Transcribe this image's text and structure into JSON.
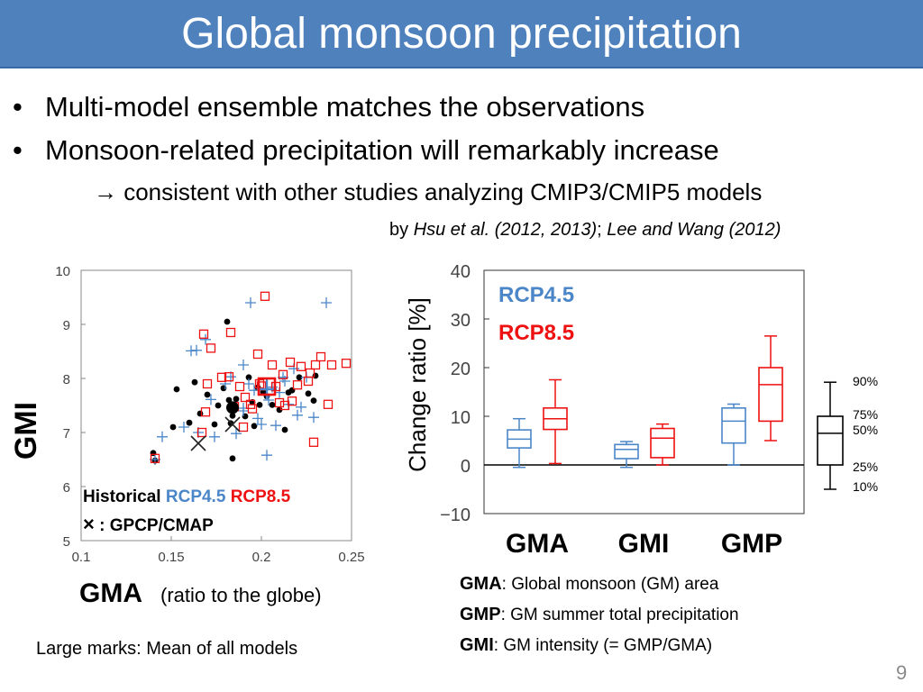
{
  "slide": {
    "title": "Global monsoon precipitation",
    "bullets": [
      "Multi-model ensemble matches the observations",
      "Monsoon-related precipitation will remarkably increase"
    ],
    "bullet_symbol": "•",
    "arrow_line": "→ consistent with other studies analyzing CMIP3/CMIP5 models",
    "byline": {
      "prefix": "by ",
      "ref1": "Hsu et al. (2012, 2013)",
      "sep": "; ",
      "ref2": "Lee and Wang (2012)"
    },
    "large_marks_note": "Large marks:  Mean of all models",
    "page_number": "9",
    "glossary": [
      {
        "term": "GMA",
        "colon": ":  ",
        "desc": "Global monsoon (GM) area"
      },
      {
        "term": "GMP",
        "colon": ":   ",
        "desc": "GM summer total precipitation"
      },
      {
        "term": "GMI",
        "colon": ":    ",
        "desc": "GM intensity (= GMP/GMA)"
      }
    ]
  },
  "colors": {
    "title_bar": "#4f81bd",
    "historical": "#000000",
    "rcp45": "#4a86c8",
    "rcp85": "#ee1111"
  },
  "chart_data": [
    {
      "type": "scatter",
      "xlabel": "GMA",
      "xlabel_note": "(ratio to the globe)",
      "ylabel": "GMI",
      "xlim": [
        0.1,
        0.25
      ],
      "ylim": [
        5,
        10
      ],
      "xticks": [
        "0.1",
        "0.15",
        "0.2",
        "0.25"
      ],
      "yticks": [
        "5",
        "6",
        "7",
        "8",
        "9",
        "10"
      ],
      "legend": {
        "labels": [
          "Historical",
          "RCP4.5",
          "RCP8.5"
        ],
        "obs_symbol": "×",
        "obs_label": ": GPCP/CMAP",
        "placement": "bottom-left"
      },
      "series": [
        {
          "name": "Historical",
          "marker": "dot",
          "points": [
            [
              0.14,
              6.62
            ],
            [
              0.141,
              6.48
            ],
            [
              0.151,
              7.1
            ],
            [
              0.153,
              7.8
            ],
            [
              0.16,
              7.18
            ],
            [
              0.163,
              7.93
            ],
            [
              0.166,
              7.35
            ],
            [
              0.17,
              7.7
            ],
            [
              0.174,
              7.15
            ],
            [
              0.176,
              7.5
            ],
            [
              0.179,
              7.82
            ],
            [
              0.181,
              9.05
            ],
            [
              0.182,
              7.6
            ],
            [
              0.184,
              7.31
            ],
            [
              0.184,
              6.52
            ],
            [
              0.186,
              7.62
            ],
            [
              0.191,
              7.3
            ],
            [
              0.193,
              8.02
            ],
            [
              0.195,
              7.56
            ],
            [
              0.196,
              7.12
            ],
            [
              0.199,
              7.51
            ],
            [
              0.201,
              7.75
            ],
            [
              0.206,
              7.51
            ],
            [
              0.21,
              7.42
            ],
            [
              0.213,
              7.05
            ],
            [
              0.215,
              7.74
            ],
            [
              0.217,
              7.78
            ],
            [
              0.221,
              8.02
            ],
            [
              0.226,
              7.72
            ],
            [
              0.229,
              7.59
            ],
            [
              0.23,
              8.05
            ],
            [
              0.183,
              7.17
            ],
            [
              0.203,
              7.67
            ],
            [
              0.198,
              7.83
            ]
          ]
        },
        {
          "name": "RCP4.5",
          "marker": "plus",
          "points": [
            [
              0.141,
              6.5
            ],
            [
              0.145,
              6.92
            ],
            [
              0.157,
              7.1
            ],
            [
              0.161,
              8.51
            ],
            [
              0.164,
              8.52
            ],
            [
              0.165,
              7.0
            ],
            [
              0.169,
              8.72
            ],
            [
              0.172,
              7.61
            ],
            [
              0.174,
              6.92
            ],
            [
              0.18,
              7.9
            ],
            [
              0.186,
              6.98
            ],
            [
              0.19,
              7.4
            ],
            [
              0.19,
              7.45
            ],
            [
              0.193,
              7.9
            ],
            [
              0.194,
              9.4
            ],
            [
              0.198,
              7.26
            ],
            [
              0.203,
              6.58
            ],
            [
              0.204,
              7.6
            ],
            [
              0.206,
              7.84
            ],
            [
              0.21,
              7.74
            ],
            [
              0.212,
              8.02
            ],
            [
              0.215,
              7.52
            ],
            [
              0.218,
              8.18
            ],
            [
              0.22,
              7.32
            ],
            [
              0.222,
              7.47
            ],
            [
              0.225,
              8.02
            ],
            [
              0.229,
              7.28
            ],
            [
              0.236,
              9.4
            ],
            [
              0.196,
              7.78
            ],
            [
              0.19,
              8.25
            ],
            [
              0.183,
              8.03
            ],
            [
              0.208,
              7.13
            ],
            [
              0.2,
              7.15
            ],
            [
              0.213,
              7.95
            ]
          ]
        },
        {
          "name": "RCP8.5",
          "marker": "square",
          "points": [
            [
              0.141,
              6.52
            ],
            [
              0.167,
              7.0
            ],
            [
              0.168,
              8.82
            ],
            [
              0.169,
              7.38
            ],
            [
              0.17,
              7.9
            ],
            [
              0.172,
              8.56
            ],
            [
              0.178,
              8.02
            ],
            [
              0.182,
              8.03
            ],
            [
              0.183,
              8.85
            ],
            [
              0.188,
              7.85
            ],
            [
              0.19,
              7.1
            ],
            [
              0.191,
              7.65
            ],
            [
              0.194,
              7.52
            ],
            [
              0.195,
              7.44
            ],
            [
              0.198,
              8.45
            ],
            [
              0.2,
              7.86
            ],
            [
              0.202,
              9.52
            ],
            [
              0.206,
              8.25
            ],
            [
              0.208,
              7.85
            ],
            [
              0.21,
              7.55
            ],
            [
              0.212,
              8.07
            ],
            [
              0.213,
              7.5
            ],
            [
              0.216,
              8.3
            ],
            [
              0.217,
              7.58
            ],
            [
              0.22,
              7.88
            ],
            [
              0.222,
              8.22
            ],
            [
              0.226,
              7.95
            ],
            [
              0.227,
              8.1
            ],
            [
              0.229,
              6.82
            ],
            [
              0.23,
              8.25
            ],
            [
              0.233,
              8.4
            ],
            [
              0.237,
              7.52
            ],
            [
              0.239,
              8.25
            ],
            [
              0.247,
              8.28
            ],
            [
              0.185,
              7.48
            ],
            [
              0.199,
              7.9
            ]
          ]
        },
        {
          "name": "GPCP/CMAP",
          "marker": "x",
          "points": [
            [
              0.165,
              6.8
            ],
            [
              0.184,
              7.15
            ]
          ]
        }
      ],
      "means": [
        {
          "series": "Historical",
          "point": [
            0.184,
            7.46
          ]
        },
        {
          "series": "RCP4.5",
          "point": [
            0.203,
            7.8
          ]
        },
        {
          "series": "RCP8.5",
          "point": [
            0.203,
            7.85
          ]
        }
      ]
    },
    {
      "type": "box",
      "ylabel": "Change ratio [%]",
      "ylim": [
        -10,
        40
      ],
      "yticks": [
        "−10",
        "0",
        "10",
        "20",
        "30",
        "40"
      ],
      "categories": [
        "GMA",
        "GMI",
        "GMP"
      ],
      "series": [
        {
          "name": "RCP4.5",
          "boxes": [
            {
              "p10": -0.5,
              "p25": 3.5,
              "p50": 5.3,
              "p75": 7.2,
              "p90": 9.5
            },
            {
              "p10": -0.5,
              "p25": 1.3,
              "p50": 3.2,
              "p75": 4.2,
              "p90": 4.8
            },
            {
              "p10": 0.0,
              "p25": 4.5,
              "p50": 9.0,
              "p75": 11.7,
              "p90": 12.5
            }
          ]
        },
        {
          "name": "RCP8.5",
          "boxes": [
            {
              "p10": 0.3,
              "p25": 7.3,
              "p50": 9.5,
              "p75": 11.7,
              "p90": 17.5
            },
            {
              "p10": 0.0,
              "p25": 1.5,
              "p50": 5.5,
              "p75": 7.5,
              "p90": 8.4
            },
            {
              "p10": 5.0,
              "p25": 9.0,
              "p50": 16.5,
              "p75": 20.0,
              "p90": 26.5
            }
          ]
        }
      ],
      "key": {
        "labels": [
          "90%",
          "75%",
          "50%",
          "25%",
          "10%"
        ],
        "values": {
          "p10": -5,
          "p25": 0,
          "p50": 6.5,
          "p75": 10,
          "p90": 17
        }
      }
    }
  ]
}
